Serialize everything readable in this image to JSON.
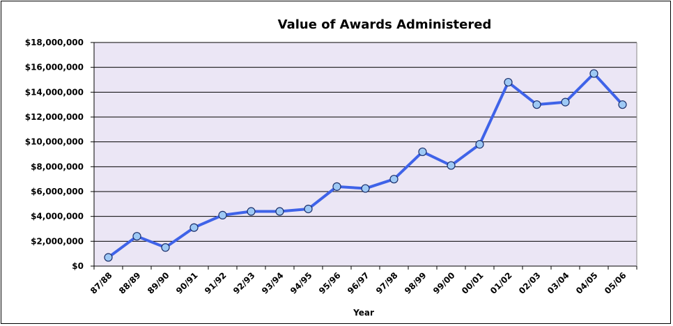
{
  "chart_data": {
    "type": "line",
    "title": "Value of Awards Administered",
    "xlabel": "Year",
    "ylabel": "",
    "ylim": [
      0,
      18000000
    ],
    "yticks": [
      0,
      2000000,
      4000000,
      6000000,
      8000000,
      10000000,
      12000000,
      14000000,
      16000000,
      18000000
    ],
    "ytick_labels": [
      "$0",
      "$2,000,000",
      "$4,000,000",
      "$6,000,000",
      "$8,000,000",
      "$10,000,000",
      "$12,000,000",
      "$14,000,000",
      "$16,000,000",
      "$18,000,000"
    ],
    "categories": [
      "87/88",
      "88/89",
      "89/90",
      "90/91",
      "91/92",
      "92/93",
      "93/94",
      "94/95",
      "95/96",
      "96/97",
      "97/98",
      "98/99",
      "99/00",
      "00/01",
      "01/02",
      "02/03",
      "03/04",
      "04/05",
      "05/06"
    ],
    "series": [
      {
        "values": [
          700000,
          2400000,
          1500000,
          3100000,
          4100000,
          4400000,
          4400000,
          4600000,
          6400000,
          6250000,
          7000000,
          9200000,
          8100000,
          9800000,
          14800000,
          13000000,
          13200000,
          15500000,
          13000000
        ]
      }
    ],
    "grid": true,
    "legend": "none",
    "colors": {
      "plot_bg": "#ebe6f5",
      "line": "#3f63e8",
      "marker_fill": "#9ec9f5",
      "marker_edge": "#1a2f6b",
      "grid": "#000000"
    }
  }
}
